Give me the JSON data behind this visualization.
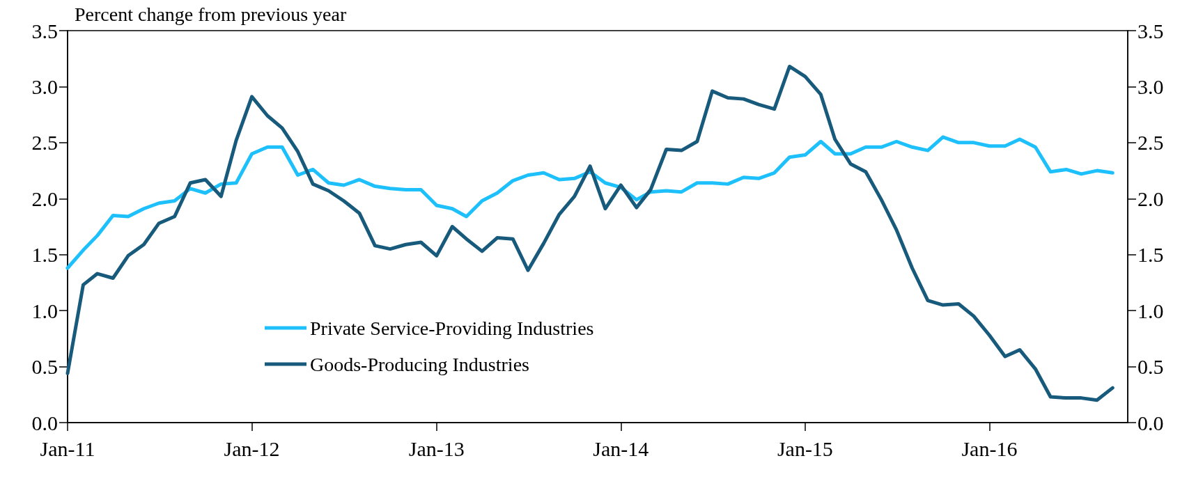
{
  "chart_data": {
    "type": "line",
    "ylabel": "Percent change from previous year",
    "x": [
      "2011-01",
      "2011-02",
      "2011-03",
      "2011-04",
      "2011-05",
      "2011-06",
      "2011-07",
      "2011-08",
      "2011-09",
      "2011-10",
      "2011-11",
      "2011-12",
      "2012-01",
      "2012-02",
      "2012-03",
      "2012-04",
      "2012-05",
      "2012-06",
      "2012-07",
      "2012-08",
      "2012-09",
      "2012-10",
      "2012-11",
      "2012-12",
      "2013-01",
      "2013-02",
      "2013-03",
      "2013-04",
      "2013-05",
      "2013-06",
      "2013-07",
      "2013-08",
      "2013-09",
      "2013-10",
      "2013-11",
      "2013-12",
      "2014-01",
      "2014-02",
      "2014-03",
      "2014-04",
      "2014-05",
      "2014-06",
      "2014-07",
      "2014-08",
      "2014-09",
      "2014-10",
      "2014-11",
      "2014-12",
      "2015-01",
      "2015-02",
      "2015-03",
      "2015-04",
      "2015-05",
      "2015-06",
      "2015-07",
      "2015-08",
      "2015-09",
      "2015-10",
      "2015-11",
      "2015-12",
      "2016-01",
      "2016-02",
      "2016-03",
      "2016-04",
      "2016-05",
      "2016-06",
      "2016-07",
      "2016-08",
      "2016-09"
    ],
    "series": [
      {
        "name": "Private Service-Providing Industries",
        "color": "#1ec0fb",
        "values": [
          1.38,
          1.54,
          1.67,
          1.85,
          1.84,
          1.91,
          1.96,
          1.98,
          2.09,
          2.05,
          2.13,
          2.14,
          2.4,
          2.46,
          2.46,
          2.21,
          2.26,
          2.14,
          2.12,
          2.17,
          2.11,
          2.09,
          2.08,
          2.08,
          1.94,
          1.91,
          1.84,
          1.98,
          2.05,
          2.16,
          2.21,
          2.23,
          2.17,
          2.18,
          2.24,
          2.14,
          2.1,
          1.99,
          2.06,
          2.07,
          2.06,
          2.14,
          2.14,
          2.13,
          2.19,
          2.18,
          2.23,
          2.37,
          2.39,
          2.51,
          2.4,
          2.4,
          2.46,
          2.46,
          2.51,
          2.46,
          2.43,
          2.55,
          2.5,
          2.5,
          2.47,
          2.47,
          2.53,
          2.46,
          2.24,
          2.26,
          2.22,
          2.25,
          2.23
        ]
      },
      {
        "name": "Goods-Producing Industries",
        "color": "#175a7c",
        "values": [
          0.44,
          1.23,
          1.33,
          1.29,
          1.49,
          1.59,
          1.78,
          1.84,
          2.14,
          2.17,
          2.02,
          2.52,
          2.91,
          2.74,
          2.63,
          2.42,
          2.13,
          2.07,
          1.98,
          1.87,
          1.58,
          1.55,
          1.59,
          1.61,
          1.49,
          1.75,
          1.64,
          1.53,
          1.65,
          1.64,
          1.36,
          1.6,
          1.86,
          2.02,
          2.29,
          1.91,
          2.12,
          1.92,
          2.08,
          2.44,
          2.43,
          2.51,
          2.96,
          2.9,
          2.89,
          2.84,
          2.8,
          3.18,
          3.09,
          2.93,
          2.53,
          2.31,
          2.24,
          1.99,
          1.72,
          1.38,
          1.09,
          1.05,
          1.06,
          0.95,
          0.78,
          0.59,
          0.65,
          0.48,
          0.23,
          0.22,
          0.22,
          0.2,
          0.31
        ]
      }
    ],
    "xlim": [
      "2011-01",
      "2016-10"
    ],
    "xticks": [
      {
        "value": "2011-01",
        "label": "Jan-11"
      },
      {
        "value": "2012-01",
        "label": "Jan-12"
      },
      {
        "value": "2013-01",
        "label": "Jan-13"
      },
      {
        "value": "2014-01",
        "label": "Jan-14"
      },
      {
        "value": "2015-01",
        "label": "Jan-15"
      },
      {
        "value": "2016-01",
        "label": "Jan-16"
      }
    ],
    "ylim": [
      0,
      3.5
    ],
    "yticks": [
      {
        "value": 0,
        "label": "0.0"
      },
      {
        "value": 0.5,
        "label": "0.5"
      },
      {
        "value": 1,
        "label": "1.0"
      },
      {
        "value": 1.5,
        "label": "1.5"
      },
      {
        "value": 2,
        "label": "2.0"
      },
      {
        "value": 2.5,
        "label": "2.5"
      },
      {
        "value": 3,
        "label": "3.0"
      },
      {
        "value": 3.5,
        "label": "3.5"
      }
    ],
    "y2lim": [
      0,
      3.5
    ],
    "y2ticks": [
      {
        "value": 0,
        "label": "0.0"
      },
      {
        "value": 0.5,
        "label": "0.5"
      },
      {
        "value": 1,
        "label": "1.0"
      },
      {
        "value": 1.5,
        "label": "1.5"
      },
      {
        "value": 2,
        "label": "2.0"
      },
      {
        "value": 2.5,
        "label": "2.5"
      },
      {
        "value": 3,
        "label": "3.0"
      },
      {
        "value": 3.5,
        "label": "3.5"
      }
    ],
    "legend": "bottom left",
    "grid": false,
    "line_style": "solid",
    "marker": "none"
  }
}
